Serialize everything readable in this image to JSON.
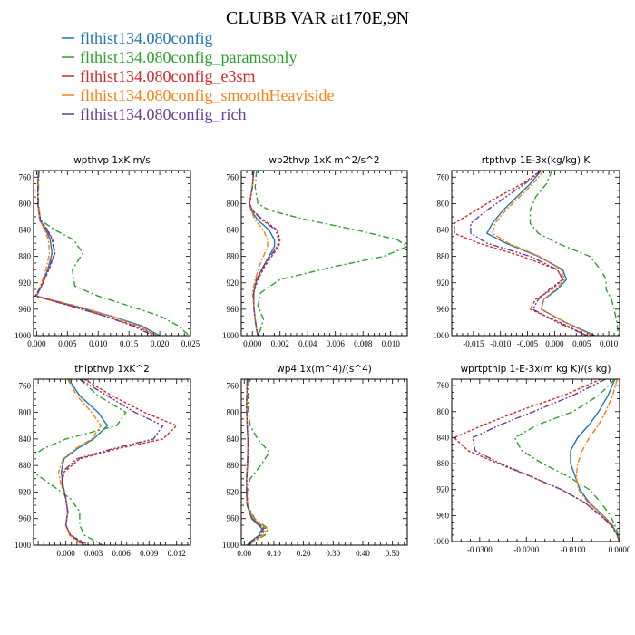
{
  "figure": {
    "title": "CLUBB VAR at170E,9N",
    "legend": [
      {
        "label": "flthist134.080config",
        "color": "#1f77b4"
      },
      {
        "label": "flthist134.080config_paramsonly",
        "color": "#2ca02c"
      },
      {
        "label": "flthist134.080config_e3sm",
        "color": "#d62728"
      },
      {
        "label": "flthist134.080config_smoothHeaviside",
        "color": "#ff7f0e"
      },
      {
        "label": "flthist134.080config_rich",
        "color": "#6a3d9a"
      }
    ]
  },
  "chart_data": [
    {
      "type": "line",
      "title": "wpthvp  1xK m/s",
      "xlim": [
        -0.0005,
        0.025
      ],
      "ylim": [
        1000,
        750
      ],
      "xticks": [
        0.0,
        0.005,
        0.01,
        0.015,
        0.02,
        0.025
      ],
      "xticklabels": [
        "0.000",
        "0.005",
        "0.010",
        "0.015",
        "0.020",
        "0.025"
      ],
      "yticks": [
        760,
        800,
        840,
        880,
        920,
        960,
        1000
      ],
      "y": [
        750,
        775,
        800,
        825,
        840,
        855,
        875,
        900,
        925,
        940,
        955,
        970,
        985,
        1000
      ],
      "series": [
        {
          "values": [
            0.0003,
            0.0002,
            0.0002,
            0.0005,
            0.0015,
            0.0022,
            0.0025,
            0.0018,
            0.0008,
            0.0,
            0.006,
            0.012,
            0.017,
            0.02
          ]
        },
        {
          "values": [
            0.0004,
            0.0003,
            0.0003,
            0.0006,
            0.003,
            0.006,
            0.0075,
            0.0058,
            0.0062,
            0.01,
            0.015,
            0.02,
            0.023,
            0.0248
          ]
        },
        {
          "values": [
            0.0003,
            0.0002,
            0.0002,
            0.0006,
            0.0018,
            0.0026,
            0.003,
            0.002,
            0.0008,
            -0.0002,
            0.0055,
            0.011,
            0.016,
            0.0195
          ]
        },
        {
          "values": [
            0.0003,
            0.0002,
            0.0002,
            0.0005,
            0.0013,
            0.0019,
            0.0021,
            0.0015,
            0.0006,
            0.0,
            0.0065,
            0.012,
            0.0165,
            0.0195
          ]
        },
        {
          "values": [
            0.0003,
            0.0002,
            0.0002,
            0.0006,
            0.0017,
            0.0025,
            0.0029,
            0.0019,
            0.0007,
            -0.0002,
            0.0055,
            0.011,
            0.0155,
            0.019
          ]
        }
      ]
    },
    {
      "type": "line",
      "title": "wp2thvp  1xK m^2/s^2",
      "xlim": [
        -0.0008,
        0.0112
      ],
      "ylim": [
        1000,
        750
      ],
      "xticks": [
        0.0,
        0.002,
        0.004,
        0.006,
        0.008,
        0.01
      ],
      "xticklabels": [
        "0.000",
        "0.002",
        "0.004",
        "0.006",
        "0.008",
        "0.010"
      ],
      "yticks": [
        760,
        800,
        840,
        880,
        920,
        960,
        1000
      ],
      "y": [
        750,
        775,
        800,
        810,
        825,
        840,
        855,
        865,
        880,
        895,
        915,
        935,
        955,
        975,
        990,
        1000
      ],
      "series": [
        {
          "values": [
            0.0001,
            0.0,
            -0.0002,
            -0.0001,
            0.0004,
            0.0012,
            0.0016,
            0.0016,
            0.0012,
            0.0008,
            0.0003,
            0.0001,
            0.0001,
            0.0002,
            0.0003,
            0.0004
          ]
        },
        {
          "values": [
            0.0003,
            0.0002,
            0.0004,
            0.0012,
            0.004,
            0.0075,
            0.0105,
            0.0112,
            0.0095,
            0.006,
            0.002,
            0.0006,
            0.0004,
            0.0008,
            0.0006,
            0.0004
          ]
        },
        {
          "values": [
            0.0001,
            0.0,
            -0.0002,
            0.0,
            0.0008,
            0.0018,
            0.002,
            0.0019,
            0.0014,
            0.0009,
            0.0004,
            0.0001,
            0.0001,
            0.0002,
            0.0003,
            0.0004
          ]
        },
        {
          "values": [
            0.0001,
            0.0,
            -0.0002,
            -0.0001,
            0.0002,
            0.0008,
            0.0011,
            0.0011,
            0.0008,
            0.0005,
            0.0002,
            0.0,
            0.0001,
            0.0002,
            0.0003,
            0.0004
          ]
        },
        {
          "values": [
            0.0001,
            0.0,
            -0.0002,
            0.0,
            0.0007,
            0.0017,
            0.0019,
            0.0018,
            0.0013,
            0.0008,
            0.0003,
            0.0001,
            0.0001,
            0.0002,
            0.0003,
            0.0004
          ]
        }
      ]
    },
    {
      "type": "line",
      "title": "rtpthvp  1E-3x(kg/kg) K",
      "xlim": [
        -0.019,
        0.012
      ],
      "ylim": [
        1000,
        750
      ],
      "xticks": [
        -0.015,
        -0.01,
        -0.005,
        0.0,
        0.005,
        0.01
      ],
      "xticklabels": [
        "-0.015",
        "-0.010",
        "-0.005",
        "0.000",
        "0.005",
        "0.010"
      ],
      "yticks": [
        760,
        800,
        840,
        880,
        920,
        960,
        1000
      ],
      "y": [
        750,
        770,
        790,
        810,
        830,
        845,
        860,
        880,
        900,
        915,
        930,
        945,
        960,
        980,
        1000
      ],
      "series": [
        {
          "values": [
            -0.0025,
            -0.0045,
            -0.007,
            -0.0095,
            -0.0115,
            -0.0125,
            -0.009,
            -0.003,
            0.0015,
            0.0022,
            0.0005,
            -0.002,
            -0.0025,
            0.002,
            0.0075
          ]
        },
        {
          "values": [
            -0.0005,
            -0.0015,
            -0.0035,
            -0.0045,
            -0.0045,
            -0.003,
            0.0005,
            0.0065,
            0.0085,
            0.0095,
            0.0095,
            0.0105,
            0.011,
            0.0115,
            0.0118
          ]
        },
        {
          "values": [
            -0.0025,
            -0.006,
            -0.0105,
            -0.0145,
            -0.0185,
            -0.0185,
            -0.014,
            -0.006,
            0.0005,
            0.0015,
            -0.0005,
            -0.0035,
            -0.0045,
            0.001,
            0.006
          ]
        },
        {
          "values": [
            -0.002,
            -0.004,
            -0.0065,
            -0.009,
            -0.011,
            -0.0115,
            -0.0085,
            -0.0028,
            0.0012,
            0.0018,
            0.0002,
            -0.002,
            -0.0025,
            0.002,
            0.007
          ]
        },
        {
          "values": [
            -0.0025,
            -0.0055,
            -0.009,
            -0.0125,
            -0.0155,
            -0.0155,
            -0.0125,
            -0.0045,
            0.0005,
            0.0015,
            -0.001,
            -0.003,
            -0.004,
            0.0005,
            0.006
          ]
        }
      ]
    },
    {
      "type": "line",
      "title": "thlpthvp  1xK^2",
      "xlim": [
        -0.0035,
        0.0135
      ],
      "ylim": [
        1000,
        750
      ],
      "xticks": [
        0.0,
        0.003,
        0.006,
        0.009,
        0.012
      ],
      "xticklabels": [
        "0.000",
        "0.003",
        "0.006",
        "0.009",
        "0.012"
      ],
      "yticks": [
        760,
        800,
        840,
        880,
        920,
        960,
        1000
      ],
      "y": [
        750,
        775,
        800,
        820,
        840,
        855,
        870,
        890,
        910,
        930,
        950,
        970,
        985,
        1000
      ],
      "series": [
        {
          "values": [
            0.0003,
            0.0015,
            0.0035,
            0.0045,
            0.003,
            0.0012,
            -0.0002,
            -0.0005,
            -0.0003,
            0.0,
            0.0002,
            0.0,
            0.0005,
            0.002
          ]
        },
        {
          "values": [
            0.0015,
            0.0035,
            0.0065,
            0.0055,
            0.0,
            -0.0025,
            -0.004,
            -0.0035,
            -0.0015,
            0.0005,
            0.0015,
            0.0015,
            0.002,
            0.004
          ]
        },
        {
          "values": [
            0.002,
            0.005,
            0.0085,
            0.012,
            0.0105,
            0.0055,
            0.0015,
            -0.0002,
            -0.0004,
            0.0,
            0.0002,
            0.0,
            0.0005,
            0.0025
          ]
        },
        {
          "values": [
            0.0002,
            0.0012,
            0.0028,
            0.0038,
            0.0028,
            0.001,
            -0.0003,
            -0.0008,
            -0.0005,
            0.0,
            0.0002,
            0.0,
            0.0004,
            0.0018
          ]
        },
        {
          "values": [
            0.0015,
            0.0045,
            0.0075,
            0.0105,
            0.0095,
            0.005,
            0.0012,
            -0.0004,
            -0.0004,
            0.0,
            0.0002,
            0.0,
            0.0005,
            0.0022
          ]
        }
      ]
    },
    {
      "type": "line",
      "title": "wp4  1x(m^4)/(s^4)",
      "xlim": [
        -0.01,
        0.55
      ],
      "ylim": [
        1000,
        750
      ],
      "xticks": [
        0.0,
        0.1,
        0.2,
        0.3,
        0.4,
        0.5
      ],
      "xticklabels": [
        "0.00",
        "0.10",
        "0.20",
        "0.30",
        "0.40",
        "0.50"
      ],
      "yticks": [
        760,
        800,
        840,
        880,
        920,
        960,
        1000
      ],
      "y": [
        750,
        790,
        820,
        840,
        860,
        880,
        900,
        920,
        940,
        960,
        975,
        985,
        995,
        1000
      ],
      "series": [
        {
          "values": [
            0.01,
            0.008,
            0.01,
            0.012,
            0.012,
            0.01,
            0.008,
            0.008,
            0.01,
            0.025,
            0.06,
            0.05,
            0.02,
            0.01
          ]
        },
        {
          "values": [
            0.015,
            0.012,
            0.02,
            0.045,
            0.085,
            0.055,
            0.02,
            0.01,
            0.012,
            0.035,
            0.08,
            0.07,
            0.03,
            0.015
          ]
        },
        {
          "values": [
            0.01,
            0.008,
            0.01,
            0.013,
            0.013,
            0.011,
            0.008,
            0.008,
            0.01,
            0.028,
            0.07,
            0.06,
            0.025,
            0.012
          ]
        },
        {
          "values": [
            0.01,
            0.008,
            0.01,
            0.012,
            0.012,
            0.01,
            0.008,
            0.008,
            0.012,
            0.03,
            0.075,
            0.065,
            0.028,
            0.012
          ]
        },
        {
          "values": [
            0.01,
            0.008,
            0.01,
            0.013,
            0.013,
            0.011,
            0.008,
            0.008,
            0.01,
            0.026,
            0.065,
            0.055,
            0.022,
            0.011
          ]
        }
      ]
    },
    {
      "type": "line",
      "title": "wprtpthlp  1-E-3x(m kg K)/(s kg)",
      "xlim": [
        -0.036,
        0.0
      ],
      "ylim": [
        1000,
        750
      ],
      "xticks": [
        -0.03,
        -0.02,
        -0.01,
        0.0
      ],
      "xticklabels": [
        "-0.0300",
        "-0.0200",
        "-0.0100",
        "0.0000"
      ],
      "yticks": [
        760,
        800,
        840,
        880,
        920,
        960,
        1000
      ],
      "y": [
        750,
        775,
        800,
        820,
        840,
        860,
        880,
        900,
        920,
        940,
        960,
        975,
        990,
        1000
      ],
      "series": [
        {
          "values": [
            -0.001,
            -0.0025,
            -0.0045,
            -0.0065,
            -0.009,
            -0.0105,
            -0.0105,
            -0.0095,
            -0.0085,
            -0.0065,
            -0.0035,
            -0.0015,
            -0.0005,
            -0.0001
          ]
        },
        {
          "values": [
            -0.001,
            -0.0045,
            -0.01,
            -0.0175,
            -0.0225,
            -0.021,
            -0.0165,
            -0.011,
            -0.0065,
            -0.004,
            -0.002,
            -0.001,
            -0.0003,
            -0.0001
          ]
        },
        {
          "values": [
            -0.004,
            -0.012,
            -0.022,
            -0.029,
            -0.0355,
            -0.0325,
            -0.026,
            -0.019,
            -0.0125,
            -0.0075,
            -0.004,
            -0.0018,
            -0.0005,
            -0.0001
          ]
        },
        {
          "values": [
            -0.0005,
            -0.0015,
            -0.003,
            -0.0045,
            -0.0065,
            -0.008,
            -0.009,
            -0.0093,
            -0.0088,
            -0.0068,
            -0.0035,
            -0.0015,
            -0.0005,
            -0.0001
          ]
        },
        {
          "values": [
            -0.003,
            -0.01,
            -0.0185,
            -0.0255,
            -0.0315,
            -0.031,
            -0.0255,
            -0.019,
            -0.0125,
            -0.0075,
            -0.004,
            -0.0018,
            -0.0005,
            -0.0001
          ]
        }
      ]
    }
  ]
}
